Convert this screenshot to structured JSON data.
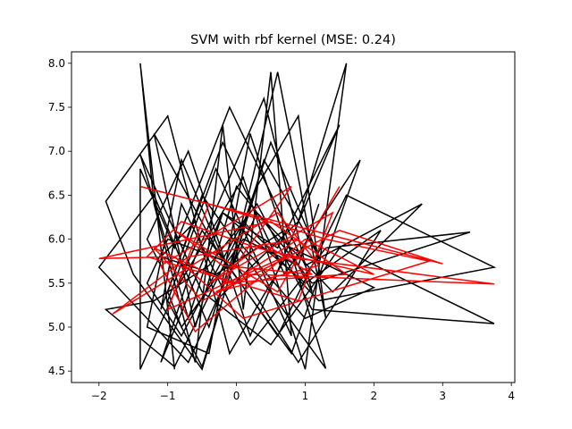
{
  "chart_data": {
    "type": "line",
    "title": "SVM with rbf kernel (MSE: 0.24)",
    "xlabel": "",
    "ylabel": "",
    "xlim": [
      -2.4,
      4.05
    ],
    "ylim": [
      4.37,
      8.13
    ],
    "grid": false,
    "legend": "none",
    "xticks": [
      -2,
      -1,
      0,
      1,
      2,
      3,
      4
    ],
    "yticks": [
      4.5,
      5.0,
      5.5,
      6.0,
      6.5,
      7.0,
      7.5,
      8.0
    ],
    "xtick_labels": [
      "−2",
      "−1",
      "0",
      "1",
      "2",
      "3",
      "4"
    ],
    "ytick_labels": [
      "4.5",
      "5.0",
      "5.5",
      "6.0",
      "6.5",
      "7.0",
      "7.5",
      "8.0"
    ],
    "series": [
      {
        "color": "#000000",
        "x": [
          -0.9,
          -1.4,
          -1.2,
          -0.6,
          -0.2,
          0.1,
          0.5,
          0.8,
          -0.3,
          -1.0,
          -0.5,
          0.3,
          0.9,
          1.3,
          0.6,
          -0.1,
          -0.8,
          -1.3,
          -0.4,
          0.2,
          0.7,
          1.1,
          0.4,
          -0.6,
          -1.1,
          -0.2,
          0.6,
          1.5,
          0.2,
          -0.7,
          -1.3,
          -0.9,
          0.1,
          1.0,
          1.6,
          0.9,
          -0.3,
          -1.0,
          -1.9,
          -1.5,
          -0.5,
          0.4,
          1.2,
          0.5,
          -0.4,
          -1.2,
          -2.0,
          -0.7,
          0.3,
          1.4,
          2.7,
          1.0,
          -0.1,
          -0.9,
          -1.4,
          -1.4,
          -0.5,
          0.8,
          1.8,
          0.7,
          -0.2,
          -1.1,
          -0.8,
          0.2,
          1.3,
          3.4,
          1.1,
          0.0,
          -0.6,
          -1.2,
          -0.3,
          0.6,
          1.6,
          3.75,
          1.2,
          0.1,
          -0.8,
          -1.3,
          -1.0,
          0.0,
          0.9,
          2.1,
          1.0,
          -0.2,
          -0.7,
          -1.4,
          -0.5,
          0.5,
          1.5,
          3.75,
          1.1,
          0.3,
          -0.4,
          -1.2,
          -1.9,
          -0.9,
          0.0,
          1.0,
          2.0,
          0.8,
          -0.1,
          -0.6,
          -1.1,
          -0.3,
          0.7,
          1.3,
          0.4,
          -0.5,
          -1.0,
          -0.8,
          0.1,
          0.9,
          1.2
        ],
        "y": [
          4.52,
          8.0,
          6.4,
          4.6,
          7.3,
          5.2,
          7.9,
          4.9,
          6.8,
          5.3,
          4.55,
          6.6,
          7.4,
          5.1,
          7.9,
          5.6,
          6.9,
          5.0,
          4.7,
          7.2,
          6.0,
          5.4,
          7.6,
          5.8,
          4.6,
          6.3,
          5.9,
          7.3,
          4.9,
          7.0,
          6.0,
          5.4,
          6.7,
          4.52,
          8.0,
          6.2,
          5.3,
          7.4,
          6.43,
          5.6,
          4.52,
          6.9,
          5.8,
          7.1,
          5.0,
          6.5,
          5.68,
          4.6,
          6.3,
          5.4,
          6.4,
          5.7,
          7.5,
          5.9,
          6.8,
          4.52,
          6.1,
          4.7,
          6.9,
          5.6,
          7.1,
          5.2,
          6.4,
          4.8,
          5.9,
          6.08,
          5.5,
          6.6,
          5.0,
          7.2,
          5.9,
          4.9,
          6.5,
          5.68,
          5.3,
          6.2,
          4.9,
          5.5,
          6.0,
          5.7,
          4.6,
          6.1,
          5.5,
          6.3,
          5.1,
          6.96,
          5.4,
          4.8,
          5.9,
          5.04,
          5.2,
          6.4,
          5.7,
          5.3,
          5.2,
          4.55,
          6.0,
          5.1,
          5.45,
          5.9,
          4.7,
          6.2,
          5.8,
          5.6,
          6.1,
          4.53,
          5.5,
          6.5,
          5.4,
          5.0,
          6.0,
          5.7,
          6.4
        ]
      },
      {
        "color": "#ff0000",
        "x": [
          -1.4,
          3.0,
          1.5,
          -0.5,
          -1.2,
          -0.1,
          0.9,
          -0.7,
          -1.8,
          0.6,
          1.2,
          -0.3,
          0.2,
          3.75,
          0.7,
          -1.0,
          -0.4,
          1.3,
          2.8,
          0.1,
          -0.9,
          -2.0,
          0.5,
          1.6,
          -0.2,
          0.8,
          -1.1,
          -0.6,
          1.0,
          2.0,
          0.3,
          -0.8,
          -1.3,
          0.9,
          1.4,
          -0.4,
          0.4,
          1.1,
          -0.2,
          -0.9,
          0.6,
          1.5
        ],
        "y": [
          6.6,
          5.72,
          6.1,
          5.3,
          5.9,
          5.5,
          6.0,
          5.8,
          5.15,
          6.3,
          5.7,
          5.4,
          5.6,
          5.49,
          5.8,
          5.2,
          6.4,
          6.0,
          5.75,
          5.1,
          5.8,
          5.78,
          6.2,
          5.6,
          5.5,
          6.6,
          5.7,
          4.95,
          6.0,
          5.6,
          5.9,
          6.2,
          5.8,
          5.3,
          6.3,
          5.5,
          5.95,
          5.6,
          5.7,
          6.1,
          5.4,
          6.6
        ]
      }
    ]
  }
}
